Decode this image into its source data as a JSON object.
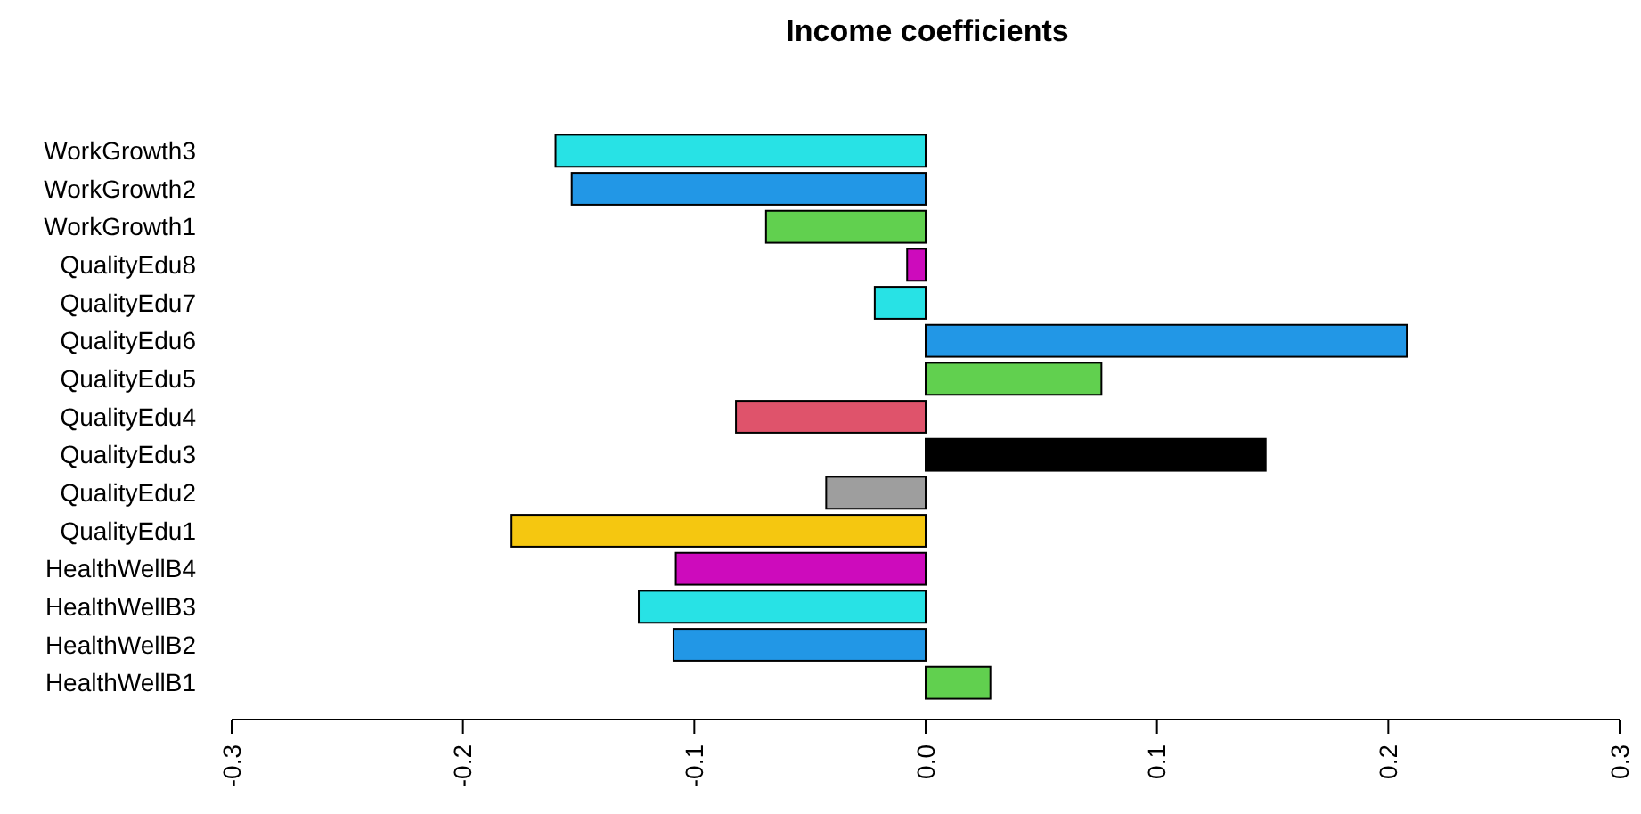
{
  "chart_data": {
    "type": "bar",
    "orientation": "horizontal",
    "title": "Income coefficients",
    "categories": [
      "WorkGrowth3",
      "WorkGrowth2",
      "WorkGrowth1",
      "QualityEdu8",
      "QualityEdu7",
      "QualityEdu6",
      "QualityEdu5",
      "QualityEdu4",
      "QualityEdu3",
      "QualityEdu2",
      "QualityEdu1",
      "HealthWellB4",
      "HealthWellB3",
      "HealthWellB2",
      "HealthWellB1"
    ],
    "values": [
      -0.16,
      -0.153,
      -0.069,
      -0.008,
      -0.022,
      0.208,
      0.076,
      -0.082,
      0.147,
      -0.043,
      -0.179,
      -0.108,
      -0.124,
      -0.109,
      0.028
    ],
    "colors": [
      "#28e2e5",
      "#2297e6",
      "#61d04f",
      "#cd0bbc",
      "#28e2e5",
      "#2297e6",
      "#61d04f",
      "#df536b",
      "#000000",
      "#9e9e9e",
      "#f5c710",
      "#cd0bbc",
      "#28e2e5",
      "#2297e6",
      "#61d04f"
    ],
    "xlim": [
      -0.3,
      0.3
    ],
    "xticks": [
      {
        "value": -0.3,
        "label": "-0.3"
      },
      {
        "value": -0.2,
        "label": "-0.2"
      },
      {
        "value": -0.1,
        "label": "-0.1"
      },
      {
        "value": 0,
        "label": "0.0"
      },
      {
        "value": 0.1,
        "label": "0.1"
      },
      {
        "value": 0.2,
        "label": "0.2"
      },
      {
        "value": 0.3,
        "label": "0.3"
      }
    ],
    "grid": false
  }
}
